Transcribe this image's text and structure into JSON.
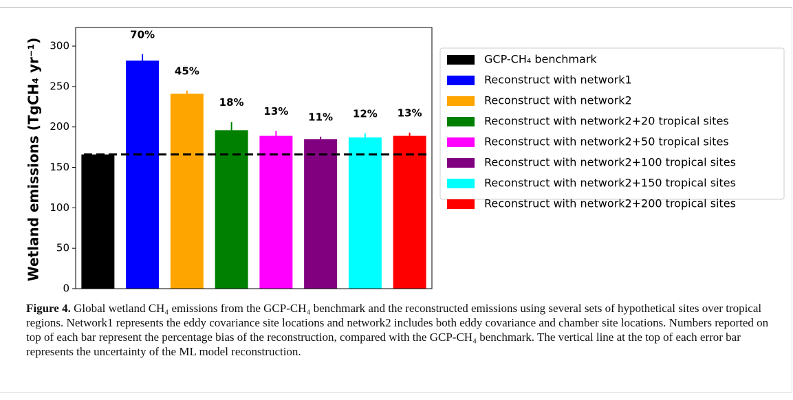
{
  "chart_data": {
    "type": "bar",
    "ylabel": "Wetland emissions (TgCH₄ yr⁻¹)",
    "categories": [
      null,
      null,
      null,
      null,
      null,
      null,
      null,
      null
    ],
    "series": [
      {
        "name": "GCP-CH₄ benchmark",
        "color": "#000000",
        "value": 166,
        "error": 1,
        "annotation": null
      },
      {
        "name": "Reconstruct with network1",
        "color": "#0000ff",
        "value": 282,
        "error": 8,
        "annotation": "70%"
      },
      {
        "name": "Reconstruct with network2",
        "color": "#ffa500",
        "value": 241,
        "error": 4,
        "annotation": "45%"
      },
      {
        "name": "Reconstruct with network2+20 tropical sites",
        "color": "#008000",
        "value": 196,
        "error": 10,
        "annotation": "18%"
      },
      {
        "name": "Reconstruct with network2+50 tropical sites",
        "color": "#ff00ff",
        "value": 189,
        "error": 6,
        "annotation": "13%"
      },
      {
        "name": "Reconstruct with network2+100 tropical sites",
        "color": "#800080",
        "value": 185,
        "error": 3,
        "annotation": "11%"
      },
      {
        "name": "Reconstruct with network2+150 tropical sites",
        "color": "#00ffff",
        "value": 187,
        "error": 5,
        "annotation": "12%"
      },
      {
        "name": "Reconstruct with network2+200 tropical sites",
        "color": "#ff0000",
        "value": 189,
        "error": 4,
        "annotation": "13%"
      }
    ],
    "benchmark_line": 166,
    "ylim": [
      0,
      323
    ],
    "yticks": [
      0,
      50,
      100,
      150,
      200,
      250,
      300
    ],
    "legend": "right"
  },
  "caption": {
    "label": "Figure 4.",
    "text": "Global wetland CH₄ emissions from the GCP-CH₄ benchmark and the reconstructed emissions using several sets of hypothetical sites over tropical regions. Network1 represents the eddy covariance site locations and network2 includes both eddy covariance and chamber site locations. Numbers reported on top of each bar represent the percentage bias of the reconstruction, compared with the GCP-CH₄ benchmark. The vertical line at the top of each error bar represents the uncertainty of the ML model reconstruction."
  }
}
